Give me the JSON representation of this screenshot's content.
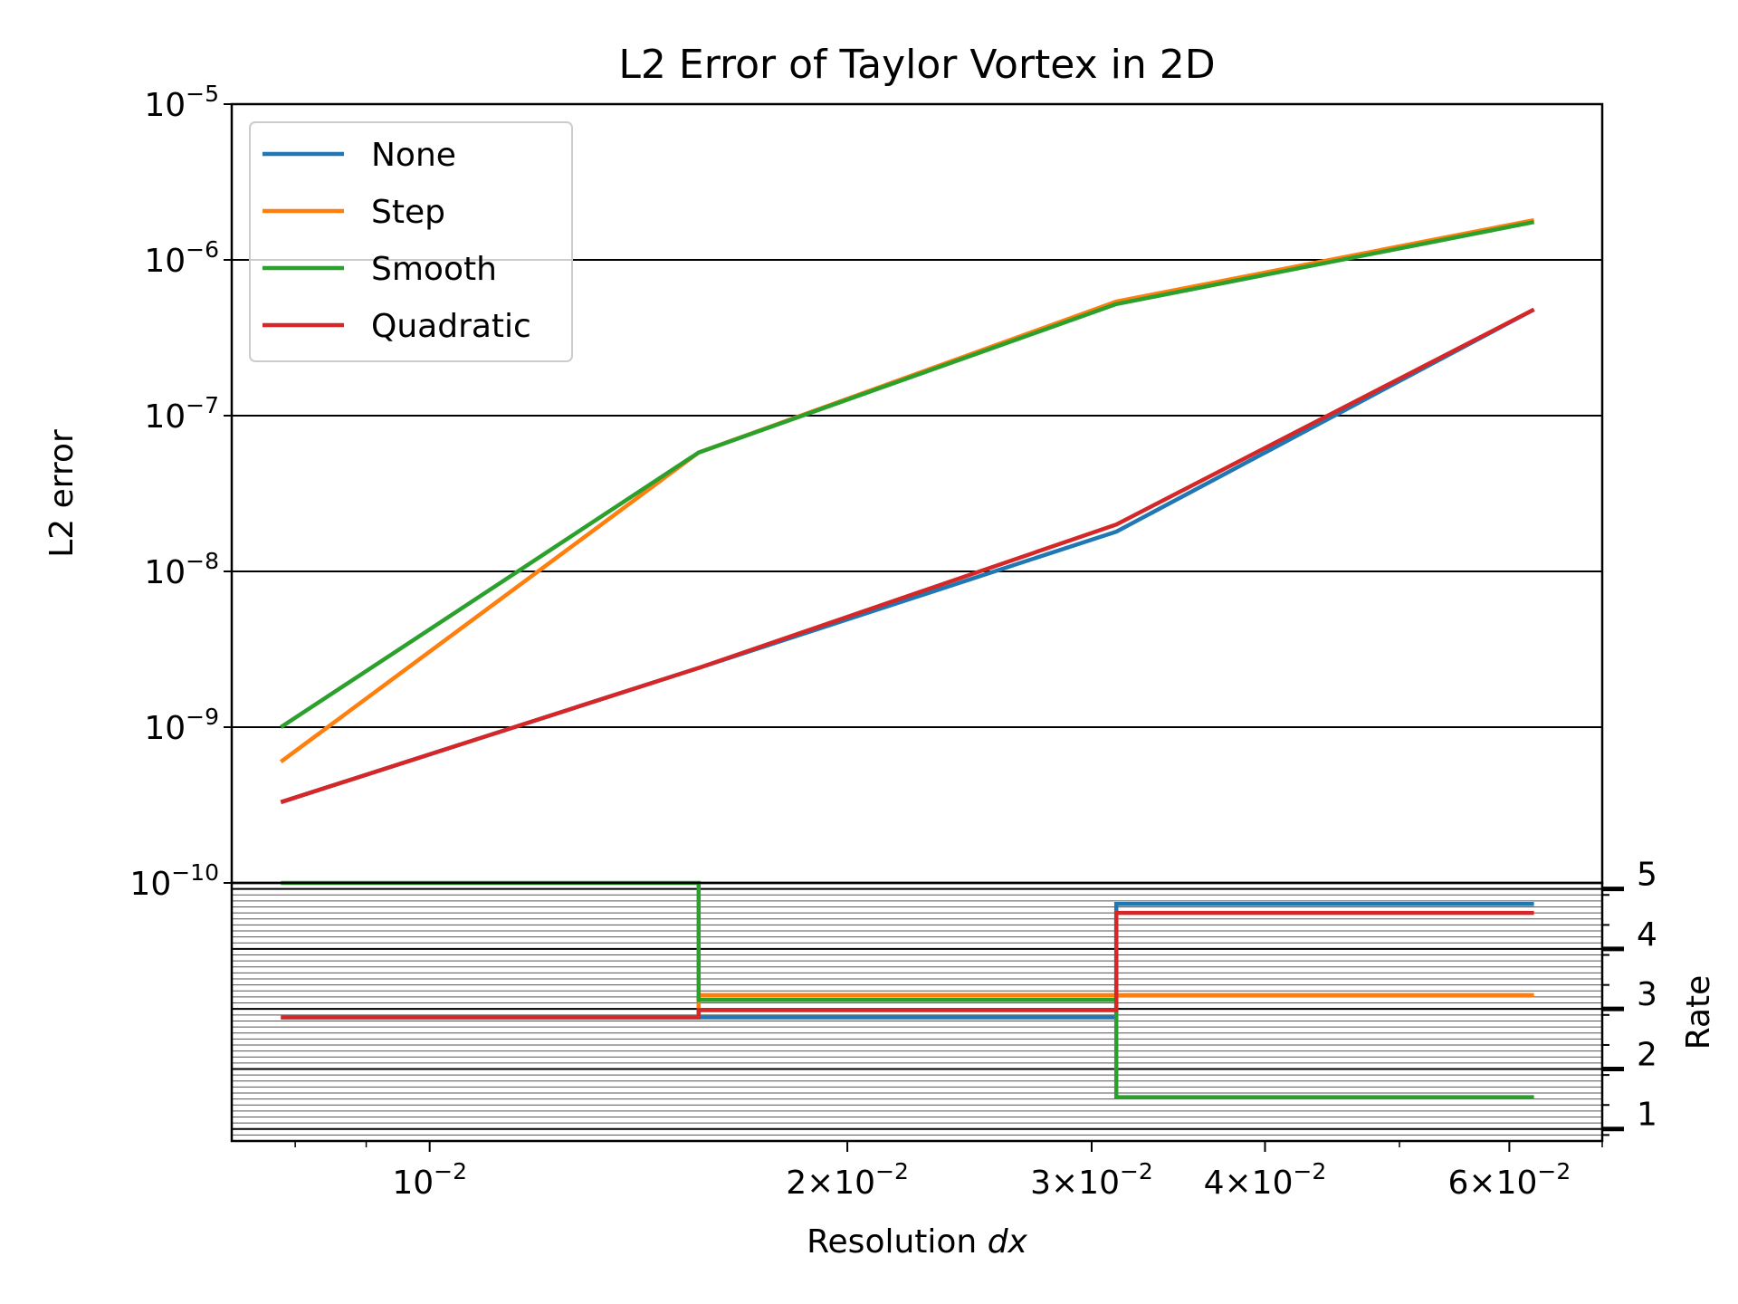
{
  "chart_data": [
    {
      "type": "line",
      "title": "L2 Error of Taylor Vortex in 2D",
      "ylabel": "L2 error",
      "xscale": "log",
      "yscale": "log",
      "ylim": [
        1e-10,
        1e-05
      ],
      "grid": "y-major",
      "legend_position": "upper-left",
      "x": [
        0.0078125,
        0.015625,
        0.03125,
        0.0625
      ],
      "series": [
        {
          "name": "None",
          "color": "#1f77b4",
          "values": [
            3.3e-10,
            2.4e-09,
            1.8e-08,
            4.8e-07
          ]
        },
        {
          "name": "Step",
          "color": "#ff7f0e",
          "values": [
            6e-10,
            5.8e-08,
            5.4e-07,
            1.8e-06
          ]
        },
        {
          "name": "Smooth",
          "color": "#2ca02c",
          "values": [
            1e-09,
            5.8e-08,
            5.2e-07,
            1.75e-06
          ]
        },
        {
          "name": "Quadratic",
          "color": "#d62728",
          "values": [
            3.3e-10,
            2.4e-09,
            2e-08,
            4.8e-07
          ]
        }
      ],
      "yticks": [
        {
          "base": "10",
          "exp": "−5",
          "value": 1e-05
        },
        {
          "base": "10",
          "exp": "−6",
          "value": 1e-06
        },
        {
          "base": "10",
          "exp": "−7",
          "value": 1e-07
        },
        {
          "base": "10",
          "exp": "−8",
          "value": 1e-08
        },
        {
          "base": "10",
          "exp": "−9",
          "value": 1e-09
        },
        {
          "base": "10",
          "exp": "−10",
          "value": 1e-10
        }
      ]
    },
    {
      "type": "line",
      "drawstyle": "steps",
      "ylabel": "Rate",
      "xlabel_prefix": "Resolution ",
      "xlabel_var": "dx",
      "xscale": "log",
      "xlim": [
        0.0072,
        0.07
      ],
      "ylim": [
        0.8,
        5.1
      ],
      "x_edges": [
        0.0078125,
        0.015625,
        0.03125,
        0.0625
      ],
      "series": [
        {
          "name": "None",
          "values": [
            2.86,
            2.86,
            4.75
          ]
        },
        {
          "name": "Step",
          "values": [
            2.86,
            3.23,
            3.23
          ]
        },
        {
          "name": "Smooth",
          "values": [
            5.1,
            3.15,
            1.53
          ]
        },
        {
          "name": "Quadratic",
          "values": [
            2.86,
            2.98,
            4.6
          ]
        }
      ],
      "yticks": [
        "1",
        "2",
        "3",
        "4",
        "5"
      ],
      "ytick_values": [
        1,
        2,
        3,
        4,
        5
      ],
      "xticks": [
        {
          "mant": "",
          "base": "10",
          "exp": "−2",
          "value": 0.01
        },
        {
          "mant": "2×",
          "base": "10",
          "exp": "−2",
          "value": 0.02
        },
        {
          "mant": "3×",
          "base": "10",
          "exp": "−2",
          "value": 0.03
        },
        {
          "mant": "4×",
          "base": "10",
          "exp": "−2",
          "value": 0.04
        },
        {
          "mant": "6×",
          "base": "10",
          "exp": "−2",
          "value": 0.06
        }
      ],
      "xminor_values": [
        0.008,
        0.009,
        0.05,
        0.07
      ]
    }
  ]
}
